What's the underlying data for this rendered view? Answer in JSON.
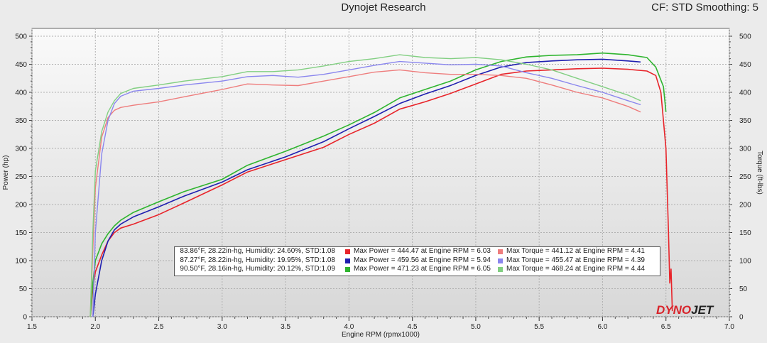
{
  "header": {
    "title": "Dynojet Research",
    "cf_label": "CF: STD Smoothing: 5"
  },
  "logo": {
    "part1": "DYNO",
    "part2": "JET"
  },
  "colors": {
    "power1": "#e8242a",
    "power2": "#1f1fb0",
    "power3": "#2fb52f",
    "torque1": "#ee7d7d",
    "torque2": "#8a86ee",
    "torque3": "#82cf82",
    "plot_bg_top": "#fafafa",
    "plot_bg_bottom": "#d8d8d8"
  },
  "legend": [
    {
      "conditions": "83.86°F, 28.22in-hg, Humidity: 24.60%, STD:1.08",
      "max_power": "Max Power = 444.47 at Engine RPM = 6.03",
      "max_torque": "Max Torque = 441.12 at Engine RPM = 4.41"
    },
    {
      "conditions": "87.27°F, 28.22in-hg, Humidity: 19.95%, STD:1.08",
      "max_power": "Max Power = 459.56 at Engine RPM = 5.94",
      "max_torque": "Max Torque = 455.47 at Engine RPM = 4.39"
    },
    {
      "conditions": "90.50°F, 28.16in-hg, Humidity: 20.12%, STD:1.09",
      "max_power": "Max Power = 471.23 at Engine RPM = 6.05",
      "max_torque": "Max Torque = 468.24 at Engine RPM = 4.44"
    }
  ],
  "chart_data": {
    "type": "line",
    "xlabel": "Engine RPM (rpmx1000)",
    "ylabel": "Power (hp)",
    "y2label": "Torque (ft-lbs)",
    "xlim": [
      1.5,
      7.0
    ],
    "ylim": [
      0,
      500
    ],
    "y2lim": [
      0,
      500
    ],
    "x_ticks": [
      "1.5",
      "2.0",
      "2.5",
      "3.0",
      "3.5",
      "4.0",
      "4.5",
      "5.0",
      "5.5",
      "6.0",
      "6.5",
      "7.0"
    ],
    "y_ticks": [
      "0",
      "50",
      "100",
      "150",
      "200",
      "250",
      "300",
      "350",
      "400",
      "450",
      "500"
    ],
    "grid": true,
    "series": [
      {
        "name": "",
        "kind": "power",
        "color_key": "power1",
        "x": [
          1.96,
          1.98,
          2.0,
          2.05,
          2.1,
          2.15,
          2.2,
          2.3,
          2.5,
          2.7,
          3.0,
          3.2,
          3.5,
          3.8,
          4.0,
          4.2,
          4.4,
          4.6,
          4.8,
          5.0,
          5.2,
          5.4,
          5.6,
          5.8,
          6.0,
          6.2,
          6.35,
          6.42,
          6.46,
          6.5,
          6.52,
          6.53,
          6.54,
          6.55
        ],
        "y": [
          0,
          50,
          80,
          110,
          135,
          150,
          158,
          165,
          182,
          203,
          235,
          258,
          280,
          302,
          325,
          345,
          370,
          383,
          398,
          415,
          432,
          438,
          440,
          442,
          443,
          441,
          438,
          430,
          400,
          300,
          150,
          60,
          85,
          10
        ]
      },
      {
        "name": "",
        "kind": "power",
        "color_key": "power2",
        "x": [
          1.98,
          2.0,
          2.05,
          2.1,
          2.15,
          2.2,
          2.3,
          2.5,
          2.7,
          3.0,
          3.2,
          3.5,
          3.8,
          4.0,
          4.2,
          4.4,
          4.6,
          4.8,
          5.0,
          5.2,
          5.4,
          5.6,
          5.8,
          6.0,
          6.2,
          6.3
        ],
        "y": [
          0,
          40,
          100,
          135,
          155,
          165,
          178,
          196,
          215,
          240,
          262,
          285,
          312,
          335,
          357,
          380,
          397,
          412,
          430,
          445,
          453,
          456,
          458,
          459,
          456,
          454
        ]
      },
      {
        "name": "",
        "kind": "power",
        "color_key": "power3",
        "x": [
          1.96,
          1.98,
          2.0,
          2.05,
          2.1,
          2.15,
          2.2,
          2.3,
          2.5,
          2.7,
          3.0,
          3.2,
          3.5,
          3.8,
          4.0,
          4.2,
          4.4,
          4.6,
          4.8,
          5.0,
          5.2,
          5.4,
          5.6,
          5.8,
          6.0,
          6.2,
          6.35,
          6.42,
          6.48,
          6.5
        ],
        "y": [
          0,
          60,
          100,
          130,
          148,
          162,
          172,
          186,
          205,
          223,
          245,
          270,
          295,
          322,
          342,
          364,
          390,
          405,
          420,
          440,
          455,
          463,
          466,
          467,
          470,
          467,
          462,
          445,
          410,
          365
        ]
      },
      {
        "name": "",
        "kind": "torque",
        "color_key": "torque1",
        "x": [
          1.96,
          1.98,
          2.0,
          2.05,
          2.1,
          2.15,
          2.2,
          2.3,
          2.5,
          2.7,
          3.0,
          3.2,
          3.4,
          3.6,
          3.8,
          4.0,
          4.2,
          4.4,
          4.6,
          4.8,
          5.0,
          5.2,
          5.4,
          5.6,
          5.8,
          6.0,
          6.2,
          6.3
        ],
        "y": [
          0,
          120,
          230,
          320,
          355,
          368,
          373,
          377,
          383,
          392,
          405,
          415,
          413,
          412,
          420,
          428,
          436,
          440,
          435,
          432,
          432,
          430,
          425,
          413,
          400,
          390,
          375,
          365
        ]
      },
      {
        "name": "",
        "kind": "torque",
        "color_key": "torque2",
        "x": [
          1.98,
          2.0,
          2.05,
          2.1,
          2.15,
          2.2,
          2.3,
          2.5,
          2.7,
          3.0,
          3.2,
          3.4,
          3.6,
          3.8,
          4.0,
          4.2,
          4.4,
          4.6,
          4.8,
          5.0,
          5.2,
          5.4,
          5.6,
          5.8,
          6.0,
          6.2,
          6.3
        ],
        "y": [
          0,
          150,
          290,
          350,
          380,
          393,
          402,
          407,
          413,
          420,
          428,
          430,
          427,
          432,
          440,
          448,
          455,
          452,
          449,
          450,
          447,
          435,
          425,
          412,
          400,
          385,
          378
        ]
      },
      {
        "name": "",
        "kind": "torque",
        "color_key": "torque3",
        "x": [
          1.96,
          1.98,
          2.0,
          2.05,
          2.1,
          2.15,
          2.2,
          2.3,
          2.5,
          2.7,
          3.0,
          3.2,
          3.4,
          3.6,
          3.8,
          4.0,
          4.2,
          4.4,
          4.6,
          4.8,
          5.0,
          5.2,
          5.4,
          5.6,
          5.8,
          6.0,
          6.2,
          6.3
        ],
        "y": [
          0,
          150,
          260,
          330,
          365,
          385,
          398,
          407,
          413,
          420,
          428,
          437,
          437,
          440,
          447,
          455,
          460,
          467,
          462,
          460,
          462,
          458,
          450,
          440,
          425,
          410,
          395,
          385
        ]
      }
    ]
  }
}
